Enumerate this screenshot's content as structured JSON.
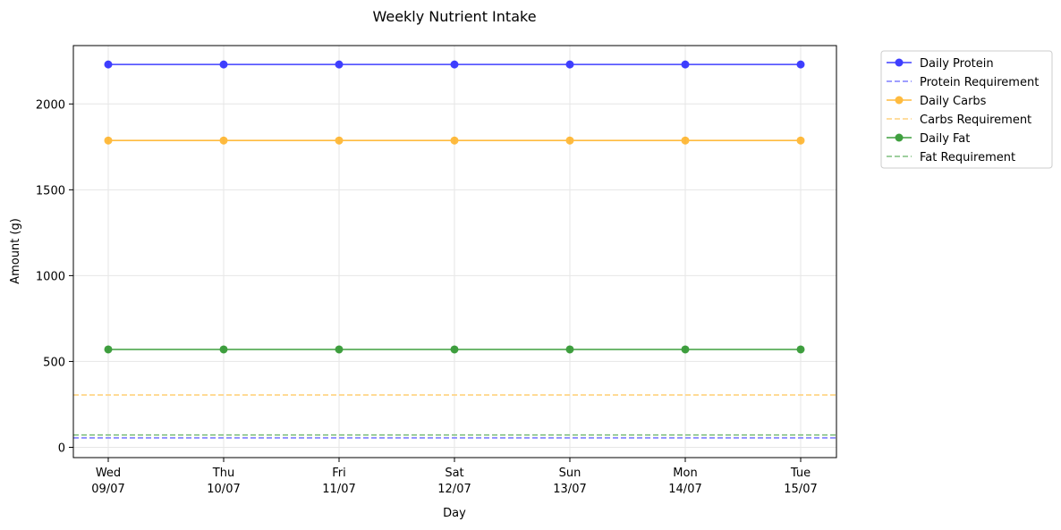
{
  "chart_data": {
    "type": "line",
    "title": "Weekly Nutrient Intake",
    "xlabel": "Day",
    "ylabel": "Amount (g)",
    "categories": [
      [
        "Wed",
        "09/07"
      ],
      [
        "Thu",
        "10/07"
      ],
      [
        "Fri",
        "11/07"
      ],
      [
        "Sat",
        "12/07"
      ],
      [
        "Sun",
        "13/07"
      ],
      [
        "Mon",
        "14/07"
      ],
      [
        "Tue",
        "15/07"
      ]
    ],
    "ylim": [
      -60,
      2340
    ],
    "yticks": [
      0,
      500,
      1000,
      1500,
      2000
    ],
    "grid": true,
    "legend_position": "outside-top-right",
    "series": [
      {
        "name": "Daily Protein",
        "kind": "line-markers",
        "color": "#0000ff",
        "values": [
          2230,
          2230,
          2230,
          2230,
          2230,
          2230,
          2230
        ]
      },
      {
        "name": "Protein Requirement",
        "kind": "hline-dashed",
        "color": "#7f7fff",
        "value": 55
      },
      {
        "name": "Daily Carbs",
        "kind": "line-markers",
        "color": "#ffa500",
        "values": [
          1787,
          1787,
          1787,
          1787,
          1787,
          1787,
          1787
        ]
      },
      {
        "name": "Carbs Requirement",
        "kind": "hline-dashed",
        "color": "#ffd27f",
        "value": 305
      },
      {
        "name": "Daily Fat",
        "kind": "line-markers",
        "color": "#008000",
        "values": [
          570,
          570,
          570,
          570,
          570,
          570,
          570
        ]
      },
      {
        "name": "Fat Requirement",
        "kind": "hline-dashed",
        "color": "#7fbf7f",
        "value": 72
      }
    ]
  }
}
